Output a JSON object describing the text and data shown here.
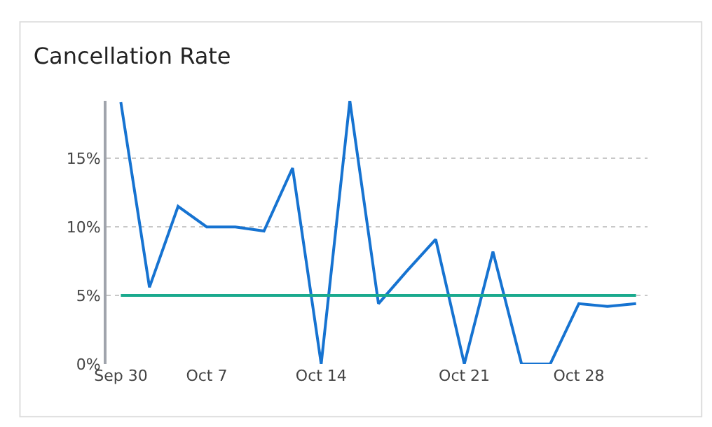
{
  "chart_data": {
    "type": "line",
    "title": "Cancellation Rate",
    "categories": [
      "Sep 30",
      null,
      null,
      "Oct 7",
      null,
      null,
      null,
      "Oct 14",
      null,
      null,
      null,
      null,
      "Oct 21",
      null,
      null,
      null,
      "Oct 28",
      null,
      null
    ],
    "series": [
      {
        "color": "#1673d1",
        "values": [
          19.1,
          5.6,
          11.5,
          10.0,
          10.0,
          9.7,
          14.3,
          0,
          19.2,
          4.4,
          6.8,
          9.1,
          0,
          8.2,
          0,
          0,
          4.4,
          4.2,
          4.4
        ]
      }
    ],
    "ylim": [
      0,
      19.2
    ],
    "yticks": [
      {
        "value": 0,
        "label": "0%"
      },
      {
        "value": 5,
        "label": "5%"
      },
      {
        "value": 10,
        "label": "10%"
      },
      {
        "value": 15,
        "label": "15%"
      }
    ],
    "ref_lines": [
      {
        "axis": "y",
        "value": 5,
        "color": "#1aaa8e"
      }
    ],
    "grid": "y",
    "legend": false,
    "marker": "none",
    "line_style": "solid"
  }
}
